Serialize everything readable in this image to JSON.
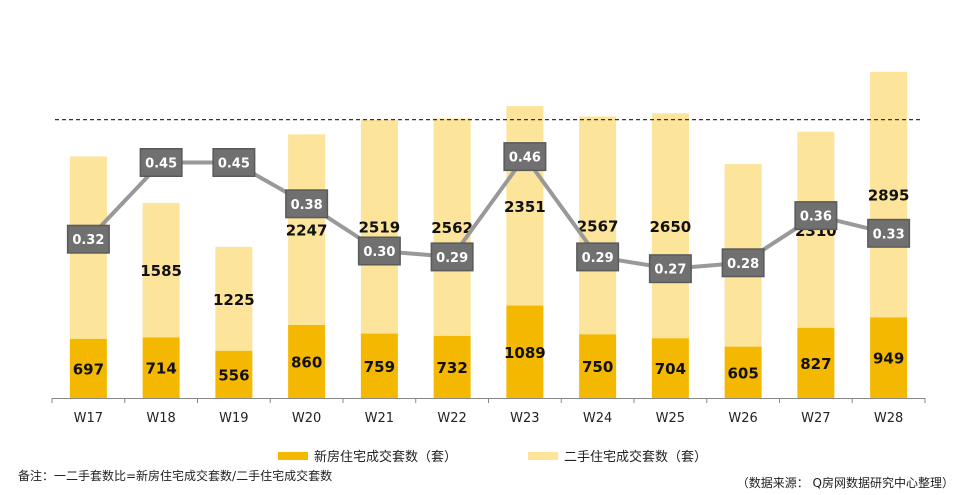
{
  "chart_data": {
    "type": "bar",
    "stacked": true,
    "categories": [
      "W17",
      "W18",
      "W19",
      "W20",
      "W21",
      "W22",
      "W23",
      "W24",
      "W25",
      "W26",
      "W27",
      "W28"
    ],
    "series": [
      {
        "name": "新房住宅成交套数（套）",
        "values": [
          697,
          714,
          556,
          860,
          759,
          732,
          1089,
          750,
          704,
          605,
          827,
          949
        ],
        "color": "#F5B800"
      },
      {
        "name": "二手住宅成交套数（套）",
        "values": [
          2149,
          1585,
          1225,
          2247,
          2519,
          2562,
          2351,
          2567,
          2650,
          2151,
          2310,
          2895
        ],
        "color": "#FCE49B"
      }
    ],
    "ratio_series": {
      "values": [
        "0.32",
        "0.45",
        "0.45",
        "0.38",
        "0.30",
        "0.29",
        "0.46",
        "0.29",
        "0.27",
        "0.28",
        "0.36",
        "0.33"
      ],
      "line_color": "#999999",
      "box_color": "#707070"
    },
    "reference_line": {
      "value": 3280,
      "style": "dashed"
    },
    "ylim": [
      0,
      3900
    ],
    "legend_position": "bottom"
  },
  "footer": {
    "note": "备注：一二手套数比=新房住宅成交套数/二手住宅成交套数",
    "source": "（数据来源： Q房网数据研究中心整理）"
  }
}
